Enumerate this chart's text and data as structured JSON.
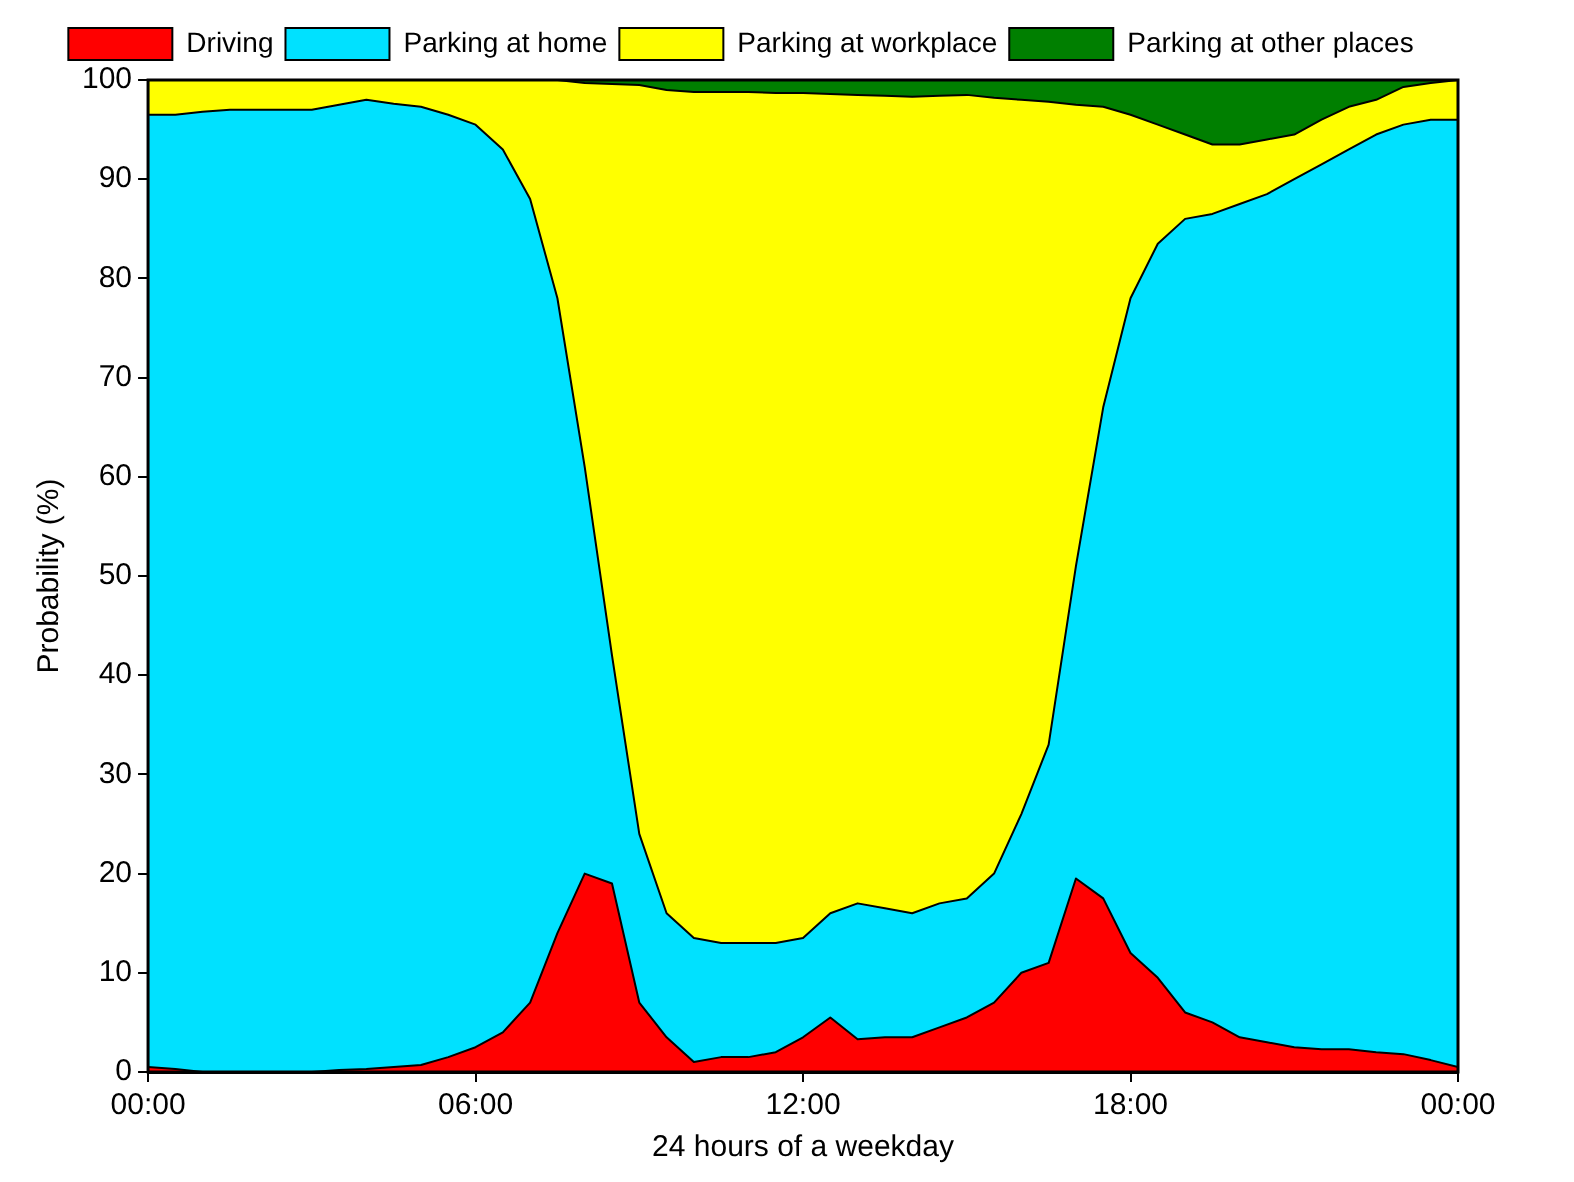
{
  "chart_data": {
    "type": "area",
    "stacked": true,
    "xlabel": "24 hours of a weekday",
    "ylabel": "Probability (%)",
    "x": [
      0,
      0.5,
      1,
      1.5,
      2,
      2.5,
      3,
      3.5,
      4,
      4.5,
      5,
      5.5,
      6,
      6.5,
      7,
      7.5,
      8,
      8.5,
      9,
      9.5,
      10,
      10.5,
      11,
      11.5,
      12,
      12.5,
      13,
      13.5,
      14,
      14.5,
      15,
      15.5,
      16,
      16.5,
      17,
      17.5,
      18,
      18.5,
      19,
      19.5,
      20,
      20.5,
      21,
      21.5,
      22,
      22.5,
      23,
      23.5,
      24
    ],
    "series": [
      {
        "name": "Driving",
        "color": "#ff0000",
        "values": [
          0.5,
          0.3,
          0,
          0,
          0,
          0,
          0,
          0.2,
          0.3,
          0.5,
          0.7,
          1.5,
          2.5,
          4,
          7,
          14,
          20,
          19,
          7,
          3.5,
          1,
          1.5,
          1.5,
          2,
          3.5,
          5.5,
          3.3,
          3.5,
          3.5,
          4.5,
          5.5,
          7,
          10,
          11,
          19.5,
          17.5,
          12,
          9.5,
          6,
          5,
          3.5,
          3,
          2.5,
          2.3,
          2.3,
          2,
          1.8,
          1.2,
          0.5
        ]
      },
      {
        "name": "Parking at home",
        "color": "#00e1ff",
        "values": [
          96,
          96.2,
          96.8,
          97,
          97,
          97,
          97,
          97.3,
          97.7,
          97.1,
          96.6,
          95,
          93,
          89,
          81,
          64,
          41,
          23,
          17,
          12.5,
          12.5,
          11.5,
          11.5,
          11,
          10,
          10.5,
          13.7,
          13,
          12.5,
          12.5,
          12,
          13,
          16,
          22,
          31.5,
          49.5,
          66,
          74,
          80,
          81.5,
          84,
          85.5,
          87.5,
          89.2,
          90.7,
          92.5,
          93.7,
          94.8,
          95.5
        ]
      },
      {
        "name": "Parking at workplace",
        "color": "#ffff00",
        "values": [
          3.5,
          3.5,
          3.2,
          3,
          3,
          3,
          3,
          2.5,
          2,
          2.4,
          2.7,
          3.5,
          4.5,
          7,
          12,
          22,
          38.7,
          57.6,
          75.5,
          83,
          85.3,
          85.8,
          85.8,
          85.7,
          85.2,
          82.6,
          81.5,
          81.9,
          82.3,
          81.4,
          81,
          78.2,
          72,
          64.8,
          46.5,
          30.3,
          18.5,
          12,
          8.5,
          7,
          6,
          5.5,
          4.5,
          4.5,
          4.3,
          3.5,
          3.8,
          3.7,
          4
        ]
      },
      {
        "name": "Parking at other places",
        "color": "#007f00",
        "values": [
          0,
          0,
          0,
          0,
          0,
          0,
          0,
          0,
          0,
          0,
          0,
          0,
          0,
          0,
          0,
          0,
          0.3,
          0.4,
          0.5,
          1,
          1.2,
          1.2,
          1.2,
          1.3,
          1.3,
          1.4,
          1.5,
          1.6,
          1.7,
          1.6,
          1.5,
          1.8,
          2,
          2.2,
          2.5,
          2.7,
          3.5,
          4.5,
          5.5,
          6.5,
          6.5,
          6,
          5.5,
          4,
          2.7,
          2,
          0.7,
          0.3,
          0
        ]
      }
    ],
    "xlim": [
      0,
      24
    ],
    "xticks": [
      {
        "value": 0,
        "label": "00:00"
      },
      {
        "value": 6,
        "label": "06:00"
      },
      {
        "value": 12,
        "label": "12:00"
      },
      {
        "value": 18,
        "label": "18:00"
      },
      {
        "value": 24,
        "label": "00:00"
      }
    ],
    "ylim": [
      0,
      100
    ],
    "yticks": [
      0,
      10,
      20,
      30,
      40,
      50,
      60,
      70,
      80,
      90,
      100
    ],
    "legend": "top"
  }
}
